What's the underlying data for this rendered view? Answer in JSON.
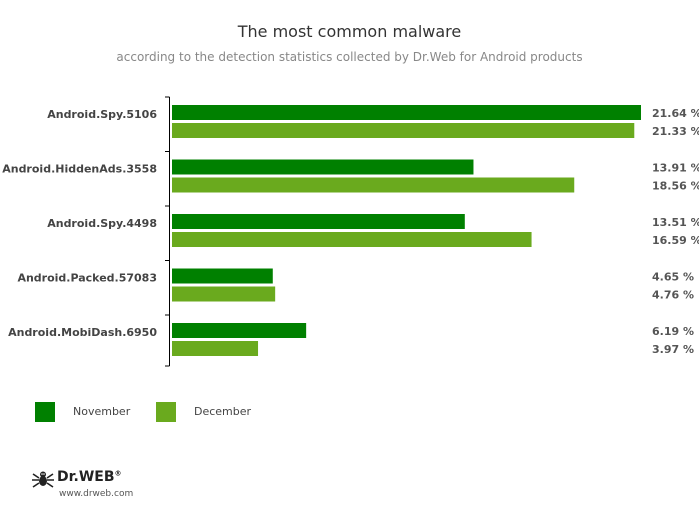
{
  "chart_data": {
    "type": "bar",
    "orientation": "horizontal",
    "title": "The most common malware",
    "subtitle": "according to the detection statistics collected by Dr.Web for Android products",
    "categories": [
      "Android.Spy.5106",
      "Android.HiddenAds.3558",
      "Android.Spy.4498",
      "Android.Packed.57083",
      "Android.MobiDash.6950"
    ],
    "series": [
      {
        "name": "November",
        "color": "#008000",
        "values": [
          21.64,
          13.91,
          13.51,
          4.65,
          6.19
        ],
        "labels": [
          "21.64 %",
          "13.91 %",
          "13.51 %",
          "4.65 %",
          "6.19 %"
        ]
      },
      {
        "name": "December",
        "color": "#6aaa1e",
        "values": [
          21.33,
          18.56,
          16.59,
          4.76,
          3.97
        ],
        "labels": [
          "21.33 %",
          "18.56 %",
          "16.59 %",
          "4.76 %",
          "3.97 %"
        ]
      }
    ],
    "xlim": [
      0,
      21.64
    ],
    "grid": false,
    "legend_placement": "bottom-left"
  },
  "legend": {
    "november": "November",
    "december": "December"
  },
  "brand": {
    "name": "Dr.WEB",
    "registered": "®",
    "url": "www.drweb.com"
  }
}
